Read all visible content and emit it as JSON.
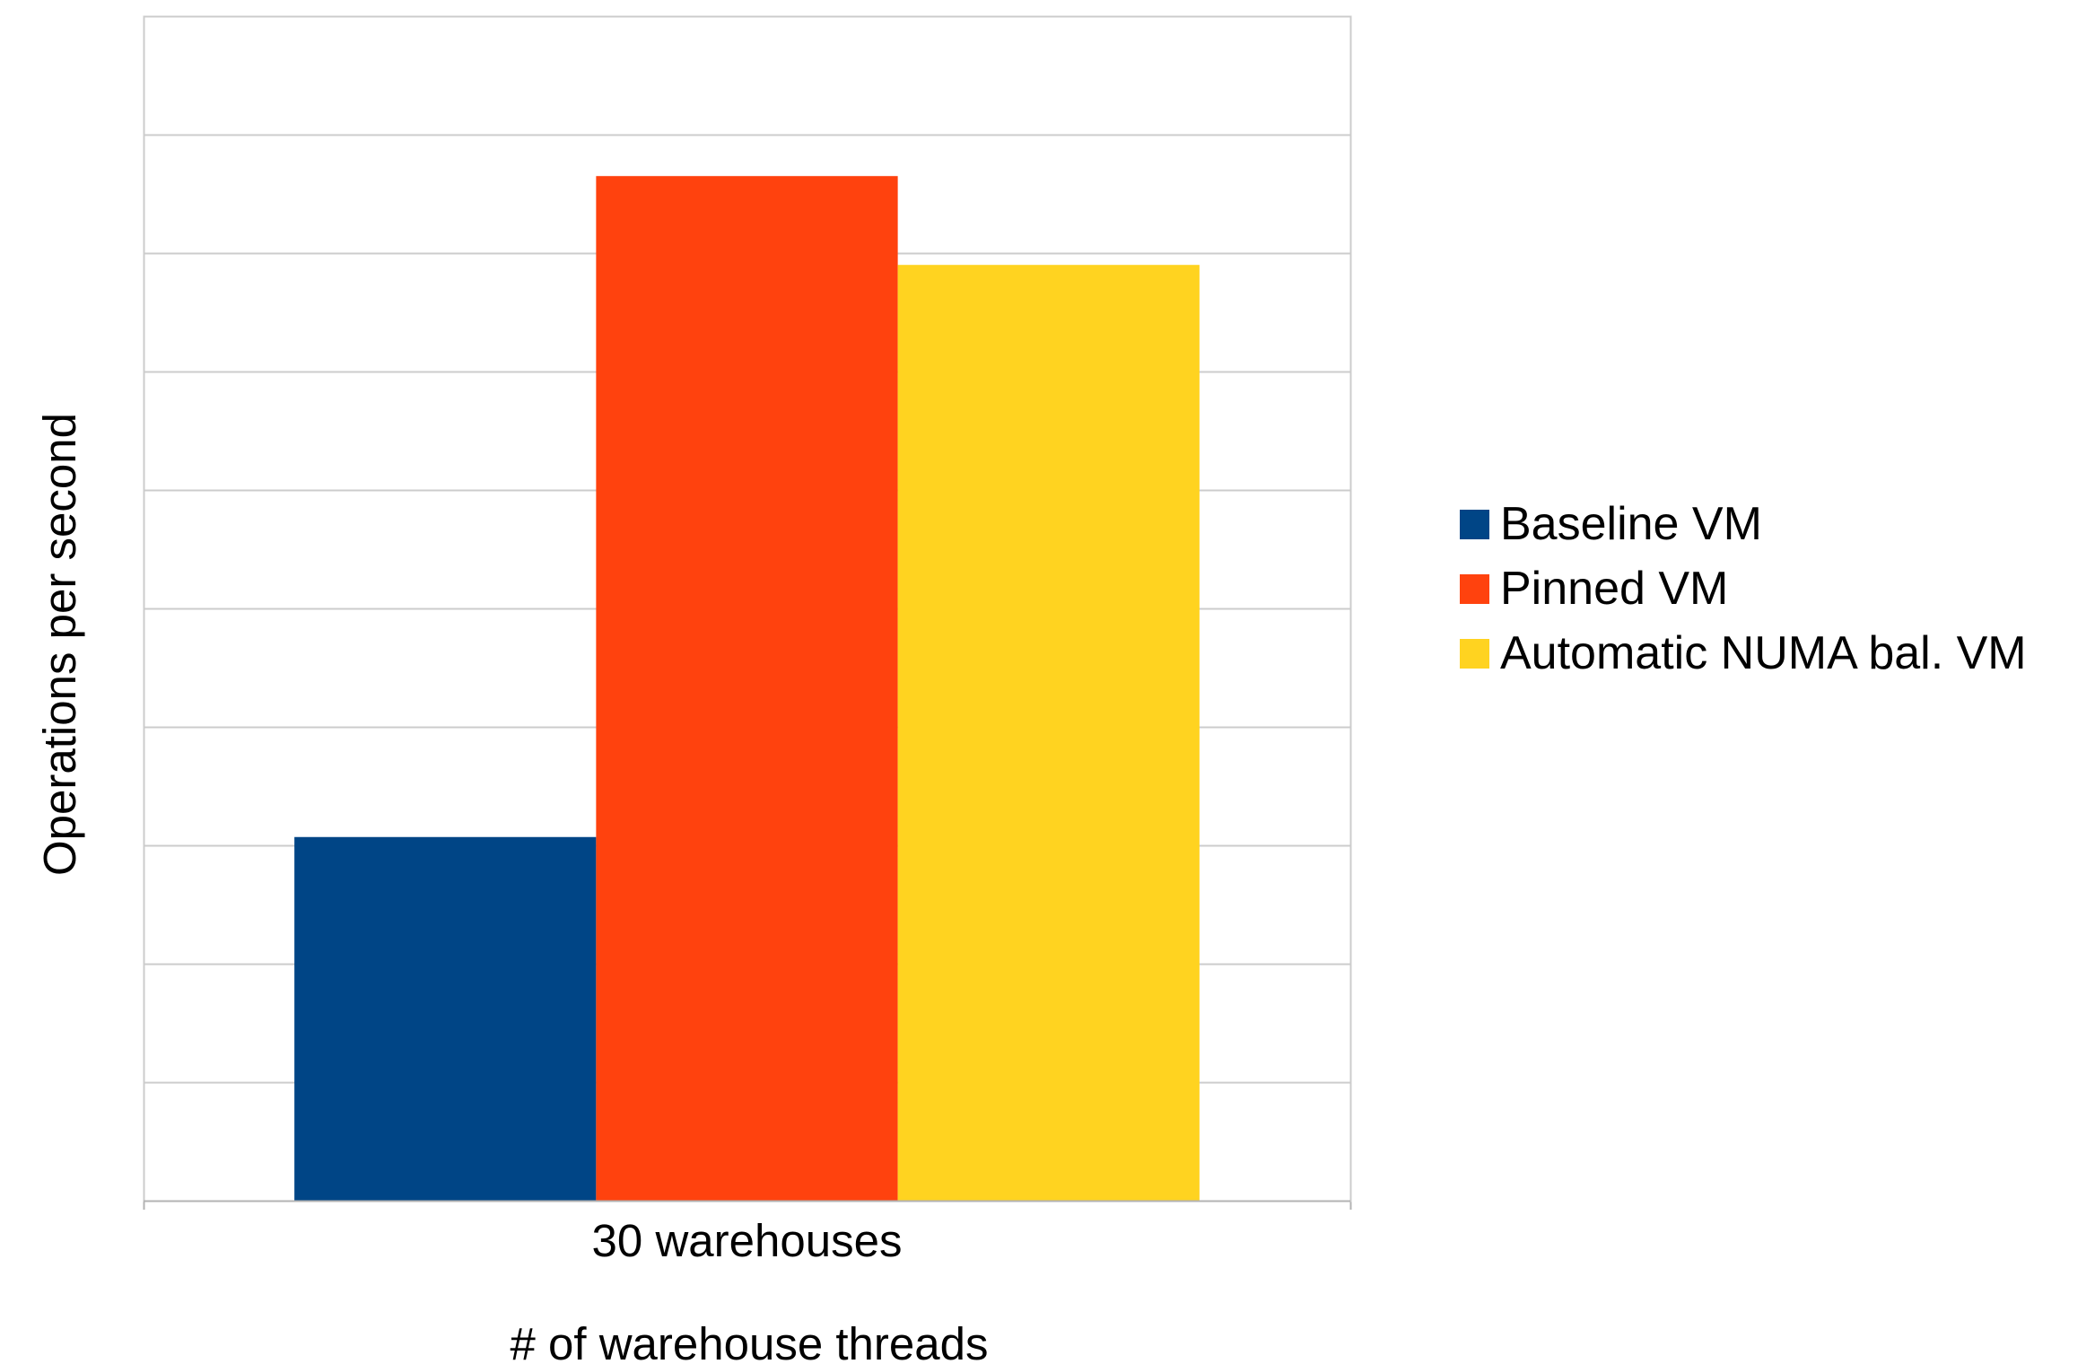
{
  "chart_data": {
    "type": "bar",
    "title": "",
    "xlabel": "# of warehouse threads",
    "ylabel": "Operations per second",
    "categories": [
      "30 warehouses"
    ],
    "series": [
      {
        "name": "Baseline VM",
        "color": "#004586",
        "values": [
          3.07
        ]
      },
      {
        "name": "Pinned VM",
        "color": "#ff420e",
        "values": [
          8.65
        ]
      },
      {
        "name": "Automatic NUMA bal. VM",
        "color": "#ffd320",
        "values": [
          7.9
        ]
      }
    ],
    "ylim": [
      0,
      10
    ],
    "ytick_count": 10,
    "ytick_labels_shown": false,
    "grid": true,
    "gridline_color": "#cccccc",
    "axis_color": "#b3b3b3",
    "legend_position": "right"
  }
}
